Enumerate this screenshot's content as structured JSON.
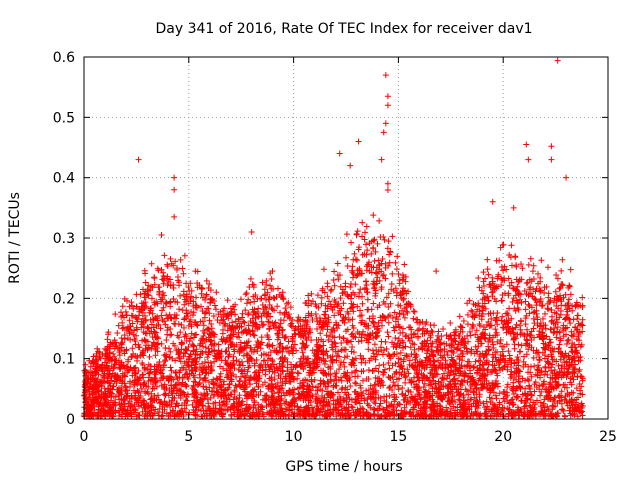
{
  "chart_data": {
    "type": "scatter",
    "title": "Day 341 of 2016, Rate Of TEC Index for receiver dav1",
    "xlabel": "GPS time / hours",
    "ylabel": "ROTI / TECUs",
    "xlim": [
      0,
      25
    ],
    "ylim": [
      0,
      0.6
    ],
    "xticks": [
      0,
      5,
      10,
      15,
      20,
      25
    ],
    "yticks": [
      0,
      0.1,
      0.2,
      0.3,
      0.4,
      0.5,
      0.6
    ],
    "xtick_labels": [
      "0",
      "5",
      "10",
      "15",
      "20",
      "25"
    ],
    "ytick_labels": [
      "0",
      "0.1",
      "0.2",
      "0.3",
      "0.4",
      "0.5",
      "0.6"
    ],
    "grid": true,
    "marker": "+",
    "marker_color": "#ff0000",
    "series": [
      {
        "name": "ROTI",
        "envelope_hours": [
          0,
          1,
          2,
          3,
          4,
          4.5,
          5,
          6,
          7,
          8,
          9,
          10,
          11,
          12,
          13,
          14,
          14.5,
          15,
          16,
          17,
          18,
          19,
          20,
          21,
          22,
          23,
          23.8
        ],
        "envelope_typical_max": [
          0.07,
          0.11,
          0.16,
          0.2,
          0.22,
          0.24,
          0.2,
          0.18,
          0.15,
          0.19,
          0.2,
          0.15,
          0.17,
          0.22,
          0.26,
          0.28,
          0.3,
          0.22,
          0.14,
          0.12,
          0.14,
          0.2,
          0.24,
          0.22,
          0.21,
          0.2,
          0.16
        ],
        "notable_points": [
          {
            "x": 2.6,
            "y": 0.43
          },
          {
            "x": 4.3,
            "y": 0.4
          },
          {
            "x": 4.3,
            "y": 0.38
          },
          {
            "x": 4.3,
            "y": 0.335
          },
          {
            "x": 3.7,
            "y": 0.305
          },
          {
            "x": 8.0,
            "y": 0.31
          },
          {
            "x": 12.2,
            "y": 0.44
          },
          {
            "x": 13.1,
            "y": 0.46
          },
          {
            "x": 12.7,
            "y": 0.42
          },
          {
            "x": 14.4,
            "y": 0.57
          },
          {
            "x": 14.5,
            "y": 0.535
          },
          {
            "x": 14.5,
            "y": 0.52
          },
          {
            "x": 14.4,
            "y": 0.49
          },
          {
            "x": 14.3,
            "y": 0.475
          },
          {
            "x": 14.2,
            "y": 0.43
          },
          {
            "x": 14.5,
            "y": 0.39
          },
          {
            "x": 21.1,
            "y": 0.455
          },
          {
            "x": 21.2,
            "y": 0.43
          },
          {
            "x": 22.3,
            "y": 0.452
          },
          {
            "x": 22.3,
            "y": 0.43
          },
          {
            "x": 22.6,
            "y": 0.594
          },
          {
            "x": 23.0,
            "y": 0.4
          },
          {
            "x": 19.5,
            "y": 0.36
          },
          {
            "x": 20.5,
            "y": 0.35
          },
          {
            "x": 16.8,
            "y": 0.245
          }
        ]
      }
    ]
  }
}
